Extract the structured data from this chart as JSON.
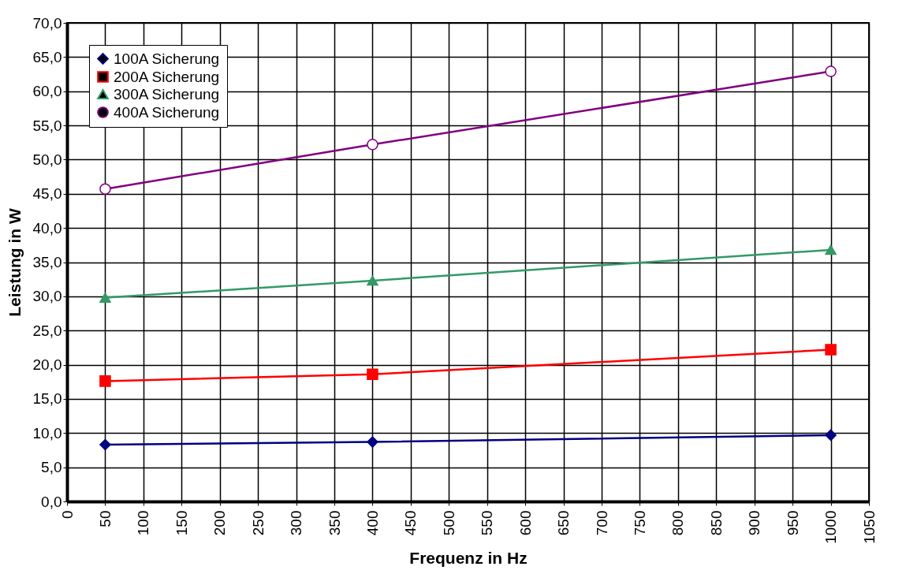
{
  "chart_data": {
    "type": "line",
    "xlabel": "Frequenz in Hz",
    "ylabel": "Leistung in W",
    "x": [
      50,
      400,
      1000
    ],
    "series": [
      {
        "name": "100A Sicherung",
        "color": "#000080",
        "marker": "diamond",
        "values": [
          8.3,
          8.7,
          9.7
        ]
      },
      {
        "name": "200A Sicherung",
        "color": "#ff0000",
        "marker": "square",
        "values": [
          17.6,
          18.6,
          22.2
        ]
      },
      {
        "name": "300A Sicherung",
        "color": "#339966",
        "marker": "triangle",
        "values": [
          29.8,
          32.3,
          36.8
        ]
      },
      {
        "name": "400A Sicherung",
        "color": "#800080",
        "marker": "circle",
        "values": [
          45.7,
          52.2,
          62.9
        ]
      }
    ],
    "xlim": [
      0,
      1050
    ],
    "xticks": [
      0,
      50,
      100,
      150,
      200,
      250,
      300,
      350,
      400,
      450,
      500,
      550,
      600,
      650,
      700,
      750,
      800,
      850,
      900,
      950,
      1000,
      1050
    ],
    "ylim": [
      0,
      70
    ],
    "yticks": [
      {
        "value": 0,
        "label": "0,0"
      },
      {
        "value": 5,
        "label": "5,0"
      },
      {
        "value": 10,
        "label": "10,0"
      },
      {
        "value": 15,
        "label": "15,0"
      },
      {
        "value": 20,
        "label": "20,0"
      },
      {
        "value": 25,
        "label": "25,0"
      },
      {
        "value": 30,
        "label": "30,0"
      },
      {
        "value": 35,
        "label": "35,0"
      },
      {
        "value": 40,
        "label": "40,0"
      },
      {
        "value": 45,
        "label": "45,0"
      },
      {
        "value": 50,
        "label": "50,0"
      },
      {
        "value": 55,
        "label": "55,0"
      },
      {
        "value": 60,
        "label": "60,0"
      },
      {
        "value": 65,
        "label": "65,0"
      },
      {
        "value": 70,
        "label": "70,0"
      }
    ],
    "grid": true,
    "legend": "top left",
    "line_style": "solid"
  }
}
